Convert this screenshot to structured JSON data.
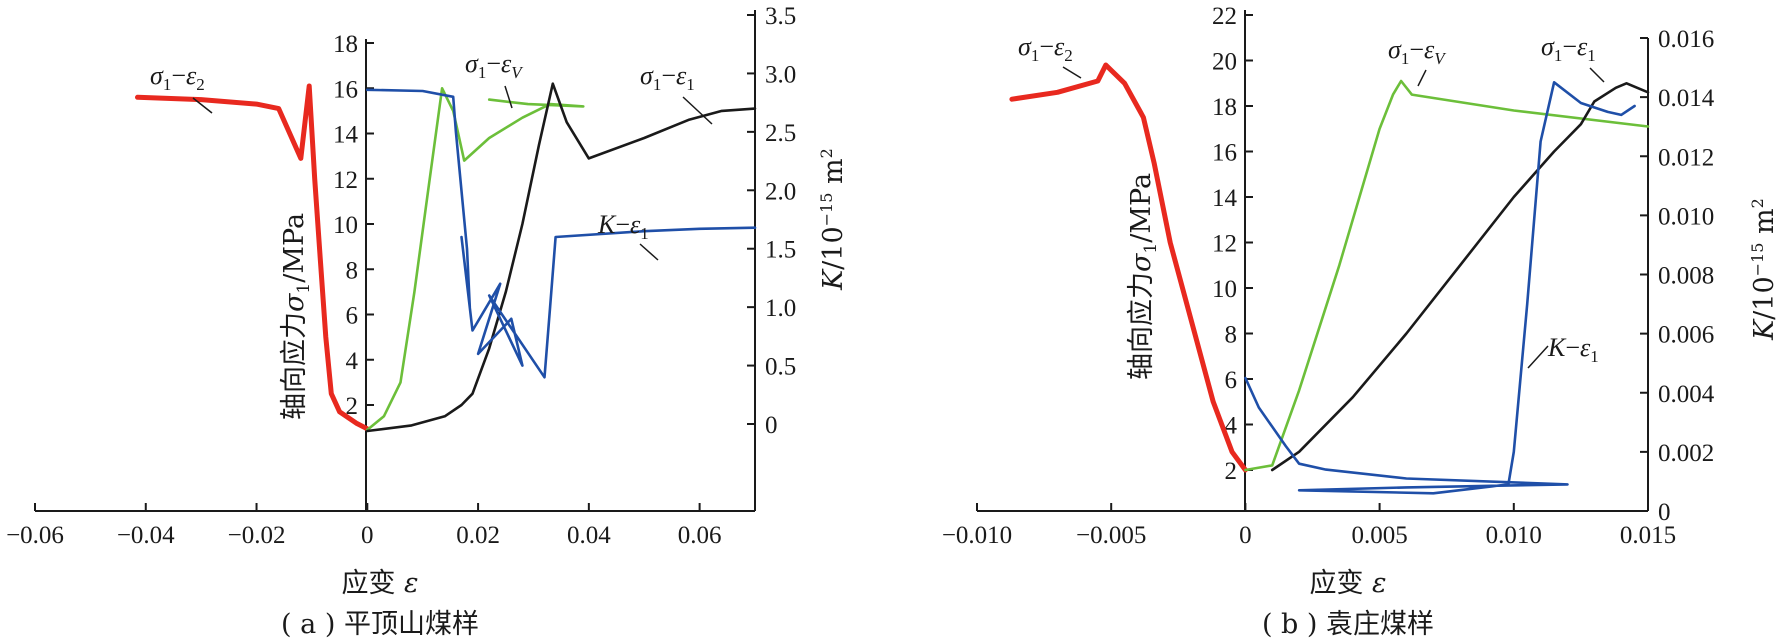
{
  "colors": {
    "sigma1_eps2": "#e8291f",
    "sigma1_epsV": "#6cbf3a",
    "sigma1_eps1": "#1a1a1a",
    "K_eps1": "#1f4fa8"
  },
  "chart_data": [
    {
      "type": "line",
      "caption": "( a ) 平顶山煤样",
      "xlabel": "应变 ε",
      "ylabel": "轴向应力σ1/MPa",
      "y2label": "K/10−15 m2",
      "xlim": [
        -0.06,
        0.07
      ],
      "ylim": [
        1,
        18
      ],
      "y2lim": [
        0,
        3.5
      ],
      "xticks": [
        "−0.06",
        "−0.04",
        "−0.02",
        "0",
        "0.02",
        "0.04",
        "0.06"
      ],
      "xtick_values": [
        -0.06,
        -0.04,
        -0.02,
        0,
        0.02,
        0.04,
        0.06
      ],
      "yticks": [
        "2",
        "4",
        "6",
        "8",
        "10",
        "12",
        "14",
        "16",
        "18"
      ],
      "ytick_values": [
        2,
        4,
        6,
        8,
        10,
        12,
        14,
        16,
        18
      ],
      "y2ticks": [
        "0",
        "0.5",
        "1.0",
        "1.5",
        "2.0",
        "2.5",
        "3.0",
        "3.5"
      ],
      "y2tick_values": [
        0,
        0.5,
        1.0,
        1.5,
        2.0,
        2.5,
        3.0,
        3.5
      ],
      "annotations": [
        {
          "text_main": "σ1−ε2",
          "series": "σ1−ε2"
        },
        {
          "text_main": "σ1−εV",
          "series": "σ1−εV"
        },
        {
          "text_main": "σ1−ε1",
          "series": "σ1−ε1"
        },
        {
          "text_main": "K−ε1",
          "series": "K−ε1"
        }
      ],
      "series": [
        {
          "name": "σ1−ε2",
          "axis": "left",
          "points": [
            [
              -0.0415,
              15.6
            ],
            [
              -0.03,
              15.5
            ],
            [
              -0.02,
              15.3
            ],
            [
              -0.016,
              15.1
            ],
            [
              -0.012,
              12.9
            ],
            [
              -0.0105,
              16.1
            ],
            [
              -0.0095,
              12.0
            ],
            [
              -0.0085,
              8.5
            ],
            [
              -0.0075,
              5.0
            ],
            [
              -0.0065,
              2.5
            ],
            [
              -0.005,
              1.7
            ],
            [
              -0.002,
              1.2
            ],
            [
              0,
              0.95
            ]
          ]
        },
        {
          "name": "σ1−εV",
          "axis": "left",
          "points": [
            [
              0,
              0.9
            ],
            [
              0.003,
              1.5
            ],
            [
              0.006,
              3.0
            ],
            [
              0.0085,
              7.0
            ],
            [
              0.011,
              11.5
            ],
            [
              0.0135,
              16.0
            ],
            [
              0.0155,
              15.0
            ],
            [
              0.0175,
              12.8
            ],
            [
              0.022,
              13.8
            ],
            [
              0.028,
              14.7
            ],
            [
              0.033,
              15.3
            ],
            [
              0.039,
              15.2
            ],
            [
              0.029,
              15.3
            ],
            [
              0.022,
              15.5
            ]
          ]
        },
        {
          "name": "σ1−ε1",
          "axis": "left",
          "points": [
            [
              0,
              0.85
            ],
            [
              0.008,
              1.1
            ],
            [
              0.014,
              1.5
            ],
            [
              0.017,
              2.0
            ],
            [
              0.019,
              2.5
            ],
            [
              0.022,
              4.5
            ],
            [
              0.025,
              7.0
            ],
            [
              0.028,
              10.0
            ],
            [
              0.031,
              13.5
            ],
            [
              0.0335,
              16.2
            ],
            [
              0.036,
              14.5
            ],
            [
              0.04,
              12.9
            ],
            [
              0.05,
              13.8
            ],
            [
              0.058,
              14.6
            ],
            [
              0.064,
              15.0
            ],
            [
              0.07,
              15.1
            ]
          ]
        },
        {
          "name": "K−ε1",
          "axis": "right",
          "points": [
            [
              0,
              2.86
            ],
            [
              0.01,
              2.85
            ],
            [
              0.0155,
              2.8
            ],
            [
              0.016,
              2.5
            ],
            [
              0.018,
              1.5
            ],
            [
              0.0185,
              1.0
            ],
            [
              0.017,
              1.6
            ],
            [
              0.019,
              0.8
            ],
            [
              0.024,
              1.2
            ],
            [
              0.02,
              0.6
            ],
            [
              0.026,
              0.9
            ],
            [
              0.028,
              0.5
            ],
            [
              0.022,
              1.1
            ],
            [
              0.032,
              0.4
            ],
            [
              0.033,
              1.0
            ],
            [
              0.034,
              1.6
            ],
            [
              0.05,
              1.65
            ],
            [
              0.06,
              1.67
            ],
            [
              0.07,
              1.68
            ]
          ]
        }
      ]
    },
    {
      "type": "line",
      "caption": "( b ) 袁庄煤样",
      "xlabel": "应变 ε",
      "ylabel": "轴向应力σ1/MPa",
      "y2label": "K/10−15 m2",
      "xlim": [
        -0.01,
        0.015
      ],
      "ylim": [
        0,
        22
      ],
      "y2lim": [
        0,
        0.016
      ],
      "xticks": [
        "−0.010",
        "−0.005",
        "0",
        "0.005",
        "0.010",
        "0.015"
      ],
      "xtick_values": [
        -0.01,
        -0.005,
        0,
        0.005,
        0.01,
        0.015
      ],
      "yticks": [
        "2",
        "4",
        "6",
        "8",
        "10",
        "12",
        "14",
        "16",
        "18",
        "20",
        "22"
      ],
      "ytick_values": [
        2,
        4,
        6,
        8,
        10,
        12,
        14,
        16,
        18,
        20,
        22
      ],
      "y2ticks": [
        "0",
        "0.002",
        "0.004",
        "0.006",
        "0.008",
        "0.010",
        "0.012",
        "0.014",
        "0.016"
      ],
      "y2tick_values": [
        0,
        0.002,
        0.004,
        0.006,
        0.008,
        0.01,
        0.012,
        0.014,
        0.016
      ],
      "annotations": [
        {
          "text_main": "σ1−ε2",
          "series": "σ1−ε2"
        },
        {
          "text_main": "σ1−εV",
          "series": "σ1−εV"
        },
        {
          "text_main": "σ1−ε1",
          "series": "σ1−ε1"
        },
        {
          "text_main": "K−ε1",
          "series": "K−ε1"
        }
      ],
      "series": [
        {
          "name": "σ1−ε2",
          "axis": "left",
          "points": [
            [
              -0.0087,
              18.3
            ],
            [
              -0.007,
              18.6
            ],
            [
              -0.0055,
              19.1
            ],
            [
              -0.0052,
              19.8
            ],
            [
              -0.0045,
              19.0
            ],
            [
              -0.0038,
              17.5
            ],
            [
              -0.0034,
              15.5
            ],
            [
              -0.0028,
              12.0
            ],
            [
              -0.002,
              8.5
            ],
            [
              -0.0012,
              5.0
            ],
            [
              -0.0005,
              2.8
            ],
            [
              0,
              2.0
            ]
          ]
        },
        {
          "name": "σ1−εV",
          "axis": "left",
          "points": [
            [
              0,
              2.0
            ],
            [
              0.001,
              2.2
            ],
            [
              0.002,
              5.5
            ],
            [
              0.0035,
              11.0
            ],
            [
              0.005,
              17.0
            ],
            [
              0.0055,
              18.5
            ],
            [
              0.0058,
              19.1
            ],
            [
              0.0062,
              18.5
            ],
            [
              0.01,
              17.8
            ],
            [
              0.015,
              17.1
            ]
          ]
        },
        {
          "name": "σ1−ε1",
          "axis": "left",
          "points": [
            [
              0.001,
              2.0
            ],
            [
              0.002,
              2.8
            ],
            [
              0.004,
              5.2
            ],
            [
              0.006,
              8.0
            ],
            [
              0.008,
              11.0
            ],
            [
              0.01,
              14.0
            ],
            [
              0.0115,
              16.0
            ],
            [
              0.0125,
              17.2
            ],
            [
              0.013,
              18.2
            ],
            [
              0.0138,
              18.8
            ],
            [
              0.0142,
              19.0
            ],
            [
              0.0148,
              18.7
            ],
            [
              0.015,
              18.6
            ]
          ]
        },
        {
          "name": "K−ε1",
          "axis": "right",
          "points": [
            [
              0,
              0.0045
            ],
            [
              0.0005,
              0.0035
            ],
            [
              0.0015,
              0.0022
            ],
            [
              0.002,
              0.0016
            ],
            [
              0.003,
              0.0014
            ],
            [
              0.006,
              0.0011
            ],
            [
              0.012,
              0.0009
            ],
            [
              0.006,
              0.0008
            ],
            [
              0.002,
              0.0007
            ],
            [
              0.007,
              0.0006
            ],
            [
              0.0098,
              0.0009
            ],
            [
              0.01,
              0.002
            ],
            [
              0.0105,
              0.007
            ],
            [
              0.011,
              0.0125
            ],
            [
              0.0115,
              0.0145
            ],
            [
              0.0125,
              0.0138
            ],
            [
              0.0135,
              0.0135
            ],
            [
              0.014,
              0.0134
            ],
            [
              0.0145,
              0.0137
            ]
          ]
        }
      ]
    }
  ]
}
